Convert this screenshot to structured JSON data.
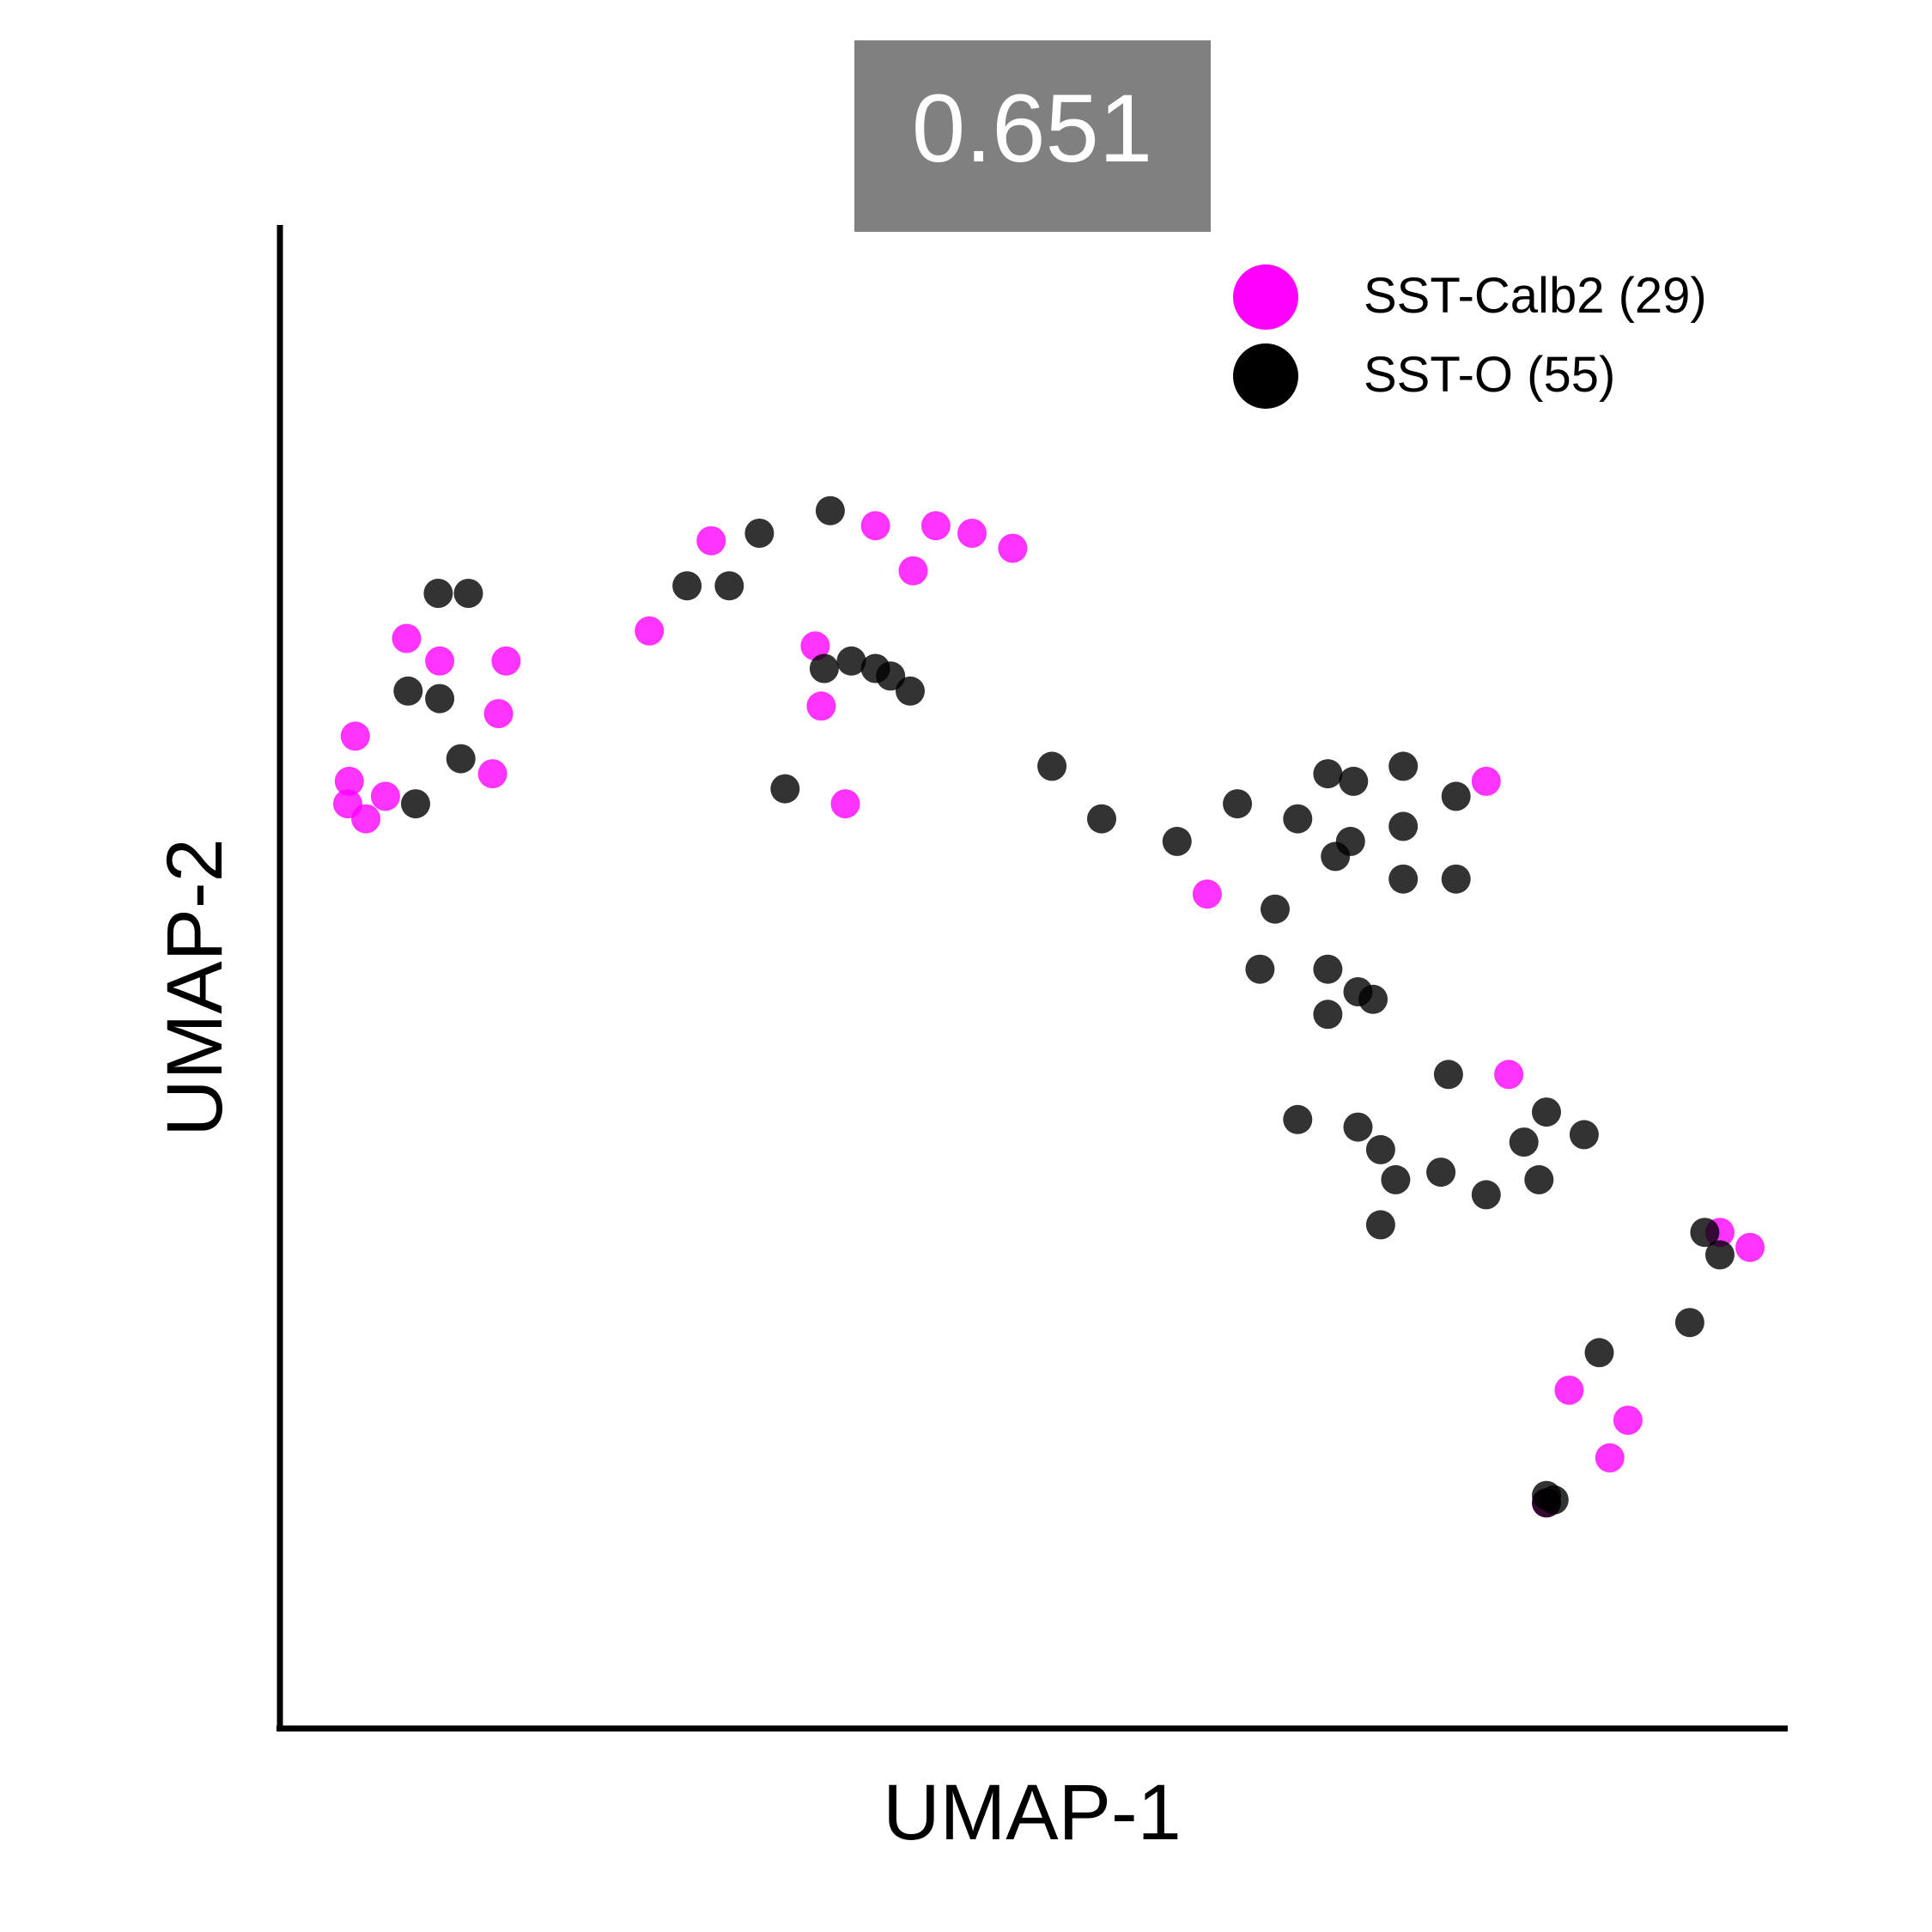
{
  "chart_data": {
    "type": "scatter",
    "title": "0.651",
    "title_box_color": "#808080",
    "title_text_color": "#ffffff",
    "xlabel": "UMAP-1",
    "ylabel": "UMAP-2",
    "xlim": [
      0,
      100
    ],
    "ylim": [
      0,
      100
    ],
    "grid": false,
    "ticks": false,
    "legend": "top-right",
    "series": [
      {
        "name": "SST-Calb2 (29)",
        "color": "#ff00ff",
        "points": [
          [
            5.0,
            66.0
          ],
          [
            4.6,
            63.0
          ],
          [
            4.5,
            61.5
          ],
          [
            5.7,
            60.5
          ],
          [
            7.0,
            62.0
          ],
          [
            8.4,
            72.5
          ],
          [
            10.6,
            71.0
          ],
          [
            14.5,
            67.5
          ],
          [
            14.1,
            63.5
          ],
          [
            15.0,
            71.0
          ],
          [
            24.5,
            73.0
          ],
          [
            28.6,
            79.0
          ],
          [
            35.9,
            68.0
          ],
          [
            35.5,
            72.0
          ],
          [
            37.5,
            61.5
          ],
          [
            39.5,
            80.0
          ],
          [
            43.5,
            80.0
          ],
          [
            45.9,
            79.5
          ],
          [
            42.0,
            77.0
          ],
          [
            48.6,
            78.5
          ],
          [
            61.5,
            55.5
          ],
          [
            80.0,
            63.0
          ],
          [
            81.5,
            43.5
          ],
          [
            95.5,
            33.0
          ],
          [
            97.5,
            32.0
          ],
          [
            85.5,
            22.5
          ],
          [
            89.4,
            20.5
          ],
          [
            88.2,
            18.0
          ],
          [
            84.0,
            15.0
          ]
        ]
      },
      {
        "name": "SST-O (55)",
        "color": "#000000",
        "points": [
          [
            10.5,
            75.5
          ],
          [
            12.5,
            75.5
          ],
          [
            8.5,
            69.0
          ],
          [
            10.6,
            68.5
          ],
          [
            12.0,
            64.5
          ],
          [
            9.0,
            61.5
          ],
          [
            27.0,
            76.0
          ],
          [
            29.8,
            76.0
          ],
          [
            31.8,
            79.5
          ],
          [
            36.5,
            81.0
          ],
          [
            36.1,
            70.5
          ],
          [
            33.5,
            62.5
          ],
          [
            37.9,
            71.0
          ],
          [
            39.5,
            70.5
          ],
          [
            40.5,
            70.0
          ],
          [
            41.8,
            69.0
          ],
          [
            51.2,
            64.0
          ],
          [
            54.5,
            60.5
          ],
          [
            59.5,
            59.0
          ],
          [
            63.5,
            61.5
          ],
          [
            67.5,
            60.5
          ],
          [
            69.5,
            63.5
          ],
          [
            71.2,
            63.0
          ],
          [
            74.5,
            64.0
          ],
          [
            78.0,
            62.0
          ],
          [
            74.5,
            60.0
          ],
          [
            70.0,
            58.0
          ],
          [
            71.0,
            59.0
          ],
          [
            78.0,
            56.5
          ],
          [
            74.5,
            56.5
          ],
          [
            66.0,
            54.5
          ],
          [
            65.0,
            50.5
          ],
          [
            69.5,
            50.5
          ],
          [
            71.5,
            49.0
          ],
          [
            72.5,
            48.5
          ],
          [
            69.5,
            47.5
          ],
          [
            77.5,
            43.5
          ],
          [
            67.5,
            40.5
          ],
          [
            71.5,
            40.0
          ],
          [
            73.0,
            38.5
          ],
          [
            74.0,
            36.5
          ],
          [
            77.0,
            37.0
          ],
          [
            82.5,
            39.0
          ],
          [
            83.5,
            36.5
          ],
          [
            84.0,
            41.0
          ],
          [
            86.5,
            39.5
          ],
          [
            80.0,
            35.5
          ],
          [
            73.0,
            33.5
          ],
          [
            94.5,
            33.0
          ],
          [
            95.5,
            31.5
          ],
          [
            93.5,
            27.0
          ],
          [
            87.5,
            25.0
          ],
          [
            84.0,
            15.5
          ],
          [
            84.5,
            15.2
          ],
          [
            84.0,
            15.0
          ]
        ]
      }
    ]
  }
}
